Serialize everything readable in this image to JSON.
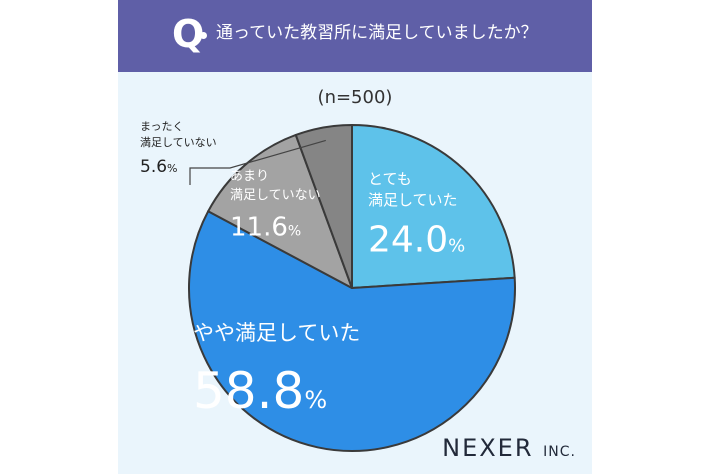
{
  "header": {
    "q_mark": "Q",
    "question": "通っていた教習所に満足していましたか？"
  },
  "sample_size": "(n=500)",
  "brand": {
    "name": "NEXER",
    "suffix": "INC."
  },
  "colors": {
    "banner": "#5f5fa7",
    "background": "#eaf5fc",
    "series": [
      "#5ec2ea",
      "#2e8ee6",
      "#a3a3a3",
      "#858585"
    ]
  },
  "chart_data": {
    "type": "pie",
    "title": "",
    "slices": [
      {
        "name": "とても満足していた",
        "label_lines": [
          "とても",
          "満足していた"
        ],
        "value": 24.0,
        "value_text": "24.0",
        "unit": "%"
      },
      {
        "name": "やや満足していた",
        "label_lines": [
          "やや満足していた"
        ],
        "value": 58.8,
        "value_text": "58.8",
        "unit": "%"
      },
      {
        "name": "あまり満足していない",
        "label_lines": [
          "あまり",
          "満足していない"
        ],
        "value": 11.6,
        "value_text": "11.6",
        "unit": "%"
      },
      {
        "name": "まったく満足していない",
        "label_lines": [
          "まったく",
          "満足していない"
        ],
        "value": 5.6,
        "value_text": "5.6",
        "unit": "%"
      }
    ]
  }
}
